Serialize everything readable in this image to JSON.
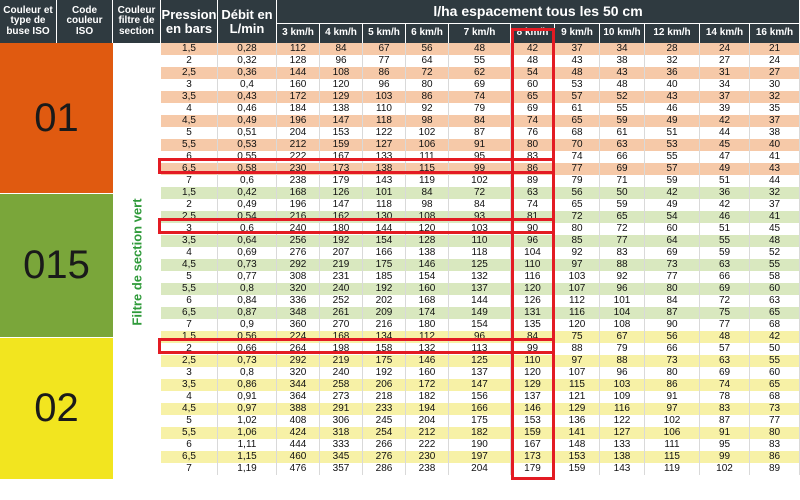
{
  "headers": {
    "buse": "Couleur et type de buse ISO",
    "code": "Code couleur ISO",
    "filtre": "Couleur filtre de section",
    "pression": "Pression en bars",
    "debit": "Débit en L/min",
    "span": "l/ha espacement tous les 50 cm",
    "speeds": [
      "3 km/h",
      "4 km/h",
      "5 km/h",
      "6 km/h",
      "7 km/h",
      "8 km/h",
      "9 km/h",
      "10 km/h",
      "12 km/h",
      "14 km/h",
      "16 km/h"
    ]
  },
  "section_label": "Filtre de section vert",
  "colors": {
    "header": "#2f3a40",
    "orange": "#e05a10",
    "green": "#7aa63a",
    "yellow": "#f2e51f",
    "orange_light": "#f6c9a8",
    "green_light": "#d9e8bf",
    "yellow_light": "#f7f1a6",
    "highlight": "#e31b23"
  },
  "groups": [
    {
      "code": "01",
      "color": "orange",
      "rows": [
        [
          "1,5",
          "0,28",
          "112",
          "84",
          "67",
          "56",
          "48",
          "42",
          "37",
          "34",
          "28",
          "24",
          "21"
        ],
        [
          "2",
          "0,32",
          "128",
          "96",
          "77",
          "64",
          "55",
          "48",
          "43",
          "38",
          "32",
          "27",
          "24"
        ],
        [
          "2,5",
          "0,36",
          "144",
          "108",
          "86",
          "72",
          "62",
          "54",
          "48",
          "43",
          "36",
          "31",
          "27"
        ],
        [
          "3",
          "0,4",
          "160",
          "120",
          "96",
          "80",
          "69",
          "60",
          "53",
          "48",
          "40",
          "34",
          "30"
        ],
        [
          "3,5",
          "0,43",
          "172",
          "129",
          "103",
          "86",
          "74",
          "65",
          "57",
          "52",
          "43",
          "37",
          "32"
        ],
        [
          "4",
          "0,46",
          "184",
          "138",
          "110",
          "92",
          "79",
          "69",
          "61",
          "55",
          "46",
          "39",
          "35"
        ],
        [
          "4,5",
          "0,49",
          "196",
          "147",
          "118",
          "98",
          "84",
          "74",
          "65",
          "59",
          "49",
          "42",
          "37"
        ],
        [
          "5",
          "0,51",
          "204",
          "153",
          "122",
          "102",
          "87",
          "76",
          "68",
          "61",
          "51",
          "44",
          "38"
        ],
        [
          "5,5",
          "0,53",
          "212",
          "159",
          "127",
          "106",
          "91",
          "80",
          "70",
          "63",
          "53",
          "45",
          "40"
        ],
        [
          "6",
          "0,55",
          "222",
          "167",
          "133",
          "111",
          "95",
          "83",
          "74",
          "66",
          "55",
          "47",
          "41"
        ],
        [
          "6,5",
          "0,58",
          "230",
          "173",
          "138",
          "115",
          "99",
          "86",
          "77",
          "69",
          "57",
          "49",
          "43"
        ],
        [
          "7",
          "0,6",
          "238",
          "179",
          "143",
          "119",
          "102",
          "89",
          "79",
          "71",
          "59",
          "51",
          "44"
        ]
      ]
    },
    {
      "code": "015",
      "color": "green",
      "rows": [
        [
          "1,5",
          "0,42",
          "168",
          "126",
          "101",
          "84",
          "72",
          "63",
          "56",
          "50",
          "42",
          "36",
          "32"
        ],
        [
          "2",
          "0,49",
          "196",
          "147",
          "118",
          "98",
          "84",
          "74",
          "65",
          "59",
          "49",
          "42",
          "37"
        ],
        [
          "2,5",
          "0,54",
          "216",
          "162",
          "130",
          "108",
          "93",
          "81",
          "72",
          "65",
          "54",
          "46",
          "41"
        ],
        [
          "3",
          "0,6",
          "240",
          "180",
          "144",
          "120",
          "103",
          "90",
          "80",
          "72",
          "60",
          "51",
          "45"
        ],
        [
          "3,5",
          "0,64",
          "256",
          "192",
          "154",
          "128",
          "110",
          "96",
          "85",
          "77",
          "64",
          "55",
          "48"
        ],
        [
          "4",
          "0,69",
          "276",
          "207",
          "166",
          "138",
          "118",
          "104",
          "92",
          "83",
          "69",
          "59",
          "52"
        ],
        [
          "4,5",
          "0,73",
          "292",
          "219",
          "175",
          "146",
          "125",
          "110",
          "97",
          "88",
          "73",
          "63",
          "55"
        ],
        [
          "5",
          "0,77",
          "308",
          "231",
          "185",
          "154",
          "132",
          "116",
          "103",
          "92",
          "77",
          "66",
          "58"
        ],
        [
          "5,5",
          "0,8",
          "320",
          "240",
          "192",
          "160",
          "137",
          "120",
          "107",
          "96",
          "80",
          "69",
          "60"
        ],
        [
          "6",
          "0,84",
          "336",
          "252",
          "202",
          "168",
          "144",
          "126",
          "112",
          "101",
          "84",
          "72",
          "63"
        ],
        [
          "6,5",
          "0,87",
          "348",
          "261",
          "209",
          "174",
          "149",
          "131",
          "116",
          "104",
          "87",
          "75",
          "65"
        ],
        [
          "7",
          "0,9",
          "360",
          "270",
          "216",
          "180",
          "154",
          "135",
          "120",
          "108",
          "90",
          "77",
          "68"
        ]
      ]
    },
    {
      "code": "02",
      "color": "yellow",
      "rows": [
        [
          "1,5",
          "0,56",
          "224",
          "168",
          "134",
          "112",
          "96",
          "84",
          "75",
          "67",
          "56",
          "48",
          "42"
        ],
        [
          "2",
          "0,66",
          "264",
          "198",
          "158",
          "132",
          "113",
          "99",
          "88",
          "79",
          "66",
          "57",
          "50"
        ],
        [
          "2,5",
          "0,73",
          "292",
          "219",
          "175",
          "146",
          "125",
          "110",
          "97",
          "88",
          "73",
          "63",
          "55"
        ],
        [
          "3",
          "0,8",
          "320",
          "240",
          "192",
          "160",
          "137",
          "120",
          "107",
          "96",
          "80",
          "69",
          "60"
        ],
        [
          "3,5",
          "0,86",
          "344",
          "258",
          "206",
          "172",
          "147",
          "129",
          "115",
          "103",
          "86",
          "74",
          "65"
        ],
        [
          "4",
          "0,91",
          "364",
          "273",
          "218",
          "182",
          "156",
          "137",
          "121",
          "109",
          "91",
          "78",
          "68"
        ],
        [
          "4,5",
          "0,97",
          "388",
          "291",
          "233",
          "194",
          "166",
          "146",
          "129",
          "116",
          "97",
          "83",
          "73"
        ],
        [
          "5",
          "1,02",
          "408",
          "306",
          "245",
          "204",
          "175",
          "153",
          "136",
          "122",
          "102",
          "87",
          "77"
        ],
        [
          "5,5",
          "1,06",
          "424",
          "318",
          "254",
          "212",
          "182",
          "159",
          "141",
          "127",
          "106",
          "91",
          "80"
        ],
        [
          "6",
          "1,11",
          "444",
          "333",
          "266",
          "222",
          "190",
          "167",
          "148",
          "133",
          "111",
          "95",
          "83"
        ],
        [
          "6,5",
          "1,15",
          "460",
          "345",
          "276",
          "230",
          "197",
          "173",
          "153",
          "138",
          "115",
          "99",
          "86"
        ],
        [
          "7",
          "1,19",
          "476",
          "357",
          "286",
          "238",
          "204",
          "179",
          "159",
          "143",
          "119",
          "102",
          "89"
        ]
      ]
    }
  ]
}
